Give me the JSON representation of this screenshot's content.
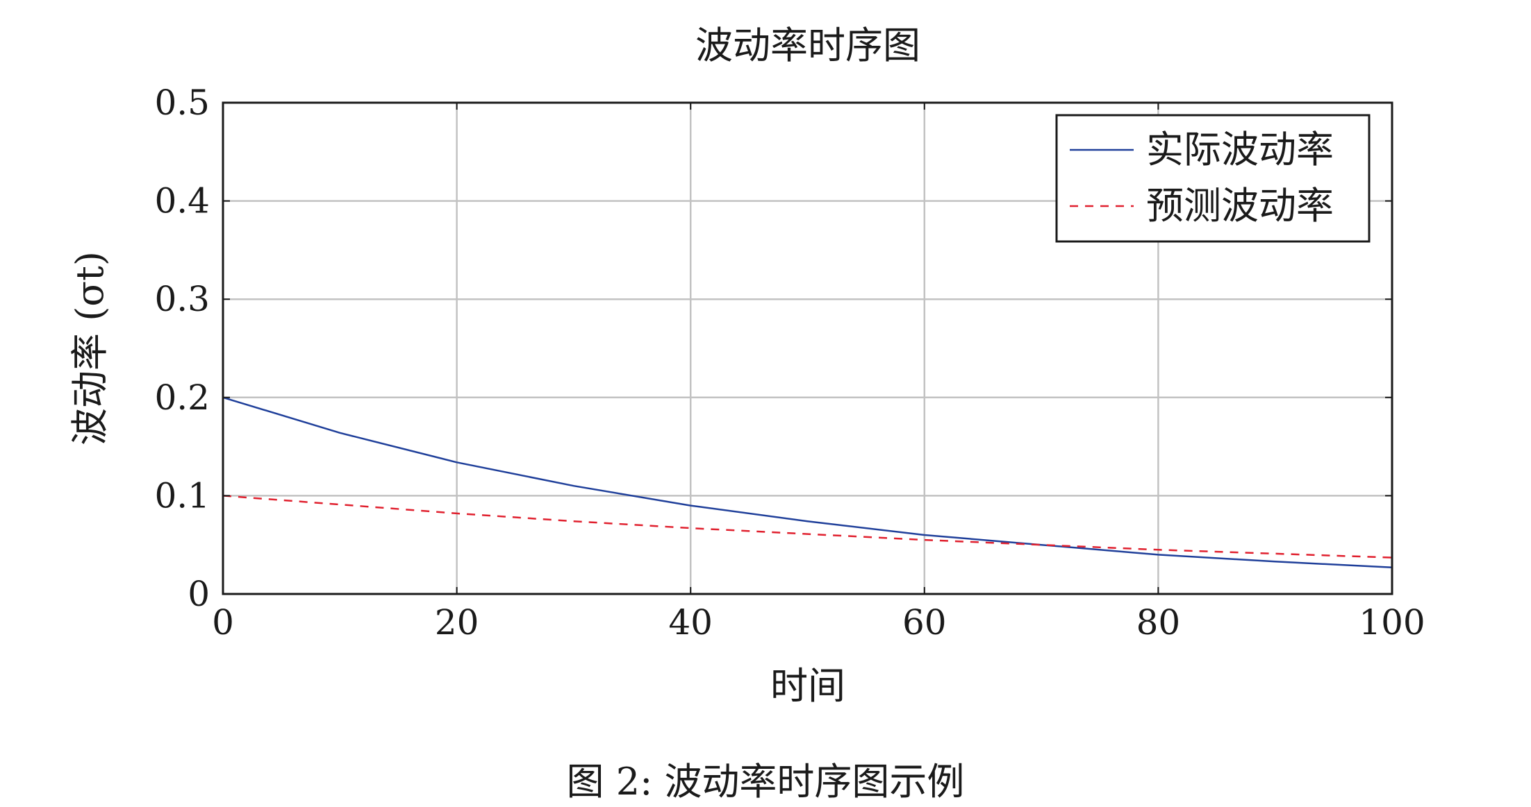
{
  "caption": {
    "prefix": "图 2:",
    "text": "波动率时序图示例"
  },
  "colors": {
    "actual": "#1f3f9a",
    "predicted": "#e0202e",
    "grid": "#c2c2c2",
    "axis": "#1a1a1a"
  },
  "chart_data": {
    "type": "line",
    "title": "波动率时序图",
    "xlabel": "时间",
    "ylabel": "波动率 (σt)",
    "xlim": [
      0,
      100
    ],
    "ylim": [
      0,
      0.5
    ],
    "x_ticks": [
      0,
      20,
      40,
      60,
      80,
      100
    ],
    "y_ticks": [
      0,
      0.1,
      0.2,
      0.3,
      0.4,
      0.5
    ],
    "x_tick_labels": [
      "0",
      "20",
      "40",
      "60",
      "80",
      "100"
    ],
    "y_tick_labels": [
      "0",
      "0.1",
      "0.2",
      "0.3",
      "0.4",
      "0.5"
    ],
    "grid": true,
    "legend_position": "top-right",
    "x": [
      0,
      10,
      20,
      30,
      40,
      50,
      60,
      70,
      80,
      90,
      100
    ],
    "series": [
      {
        "name": "实际波动率",
        "style": "solid",
        "values": [
          0.2,
          0.164,
          0.134,
          0.11,
          0.09,
          0.074,
          0.06,
          0.05,
          0.04,
          0.033,
          0.027
        ]
      },
      {
        "name": "预测波动率",
        "style": "dashed",
        "values": [
          0.1,
          0.091,
          0.082,
          0.074,
          0.067,
          0.061,
          0.055,
          0.05,
          0.045,
          0.041,
          0.037
        ]
      }
    ]
  }
}
